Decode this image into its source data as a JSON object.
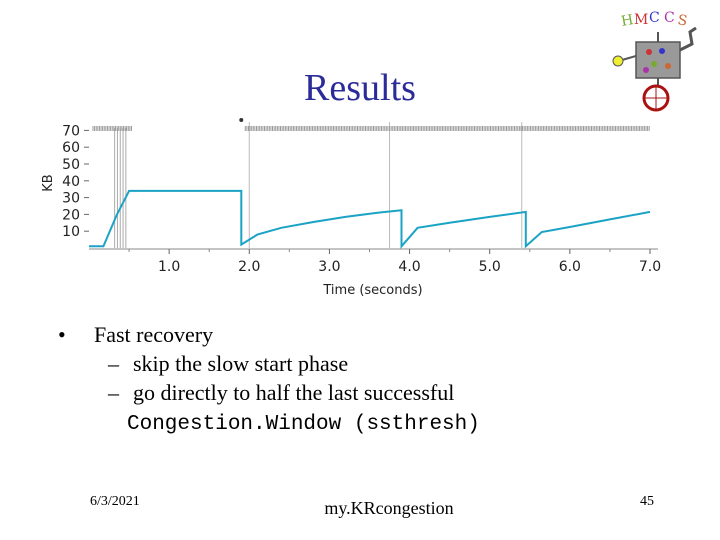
{
  "slide": {
    "title": "Results",
    "bullets": [
      {
        "text": "Fast recovery"
      }
    ],
    "sub_bullets": [
      {
        "text": "skip the slow start phase"
      },
      {
        "text": "go directly to half the last successful"
      }
    ],
    "sub_bullet_mono": "Congestion.Window (ssthresh)",
    "bullet_marker": "•",
    "sub_marker": "–",
    "footer_date": "6/3/2021",
    "footer_center": "my.KRcongestion",
    "footer_page": "45"
  },
  "logo": {
    "icon": "hmc-cs-robot-logo-icon",
    "text": "HMC CS"
  },
  "chart_data": {
    "type": "line",
    "xlabel": "Time (seconds)",
    "ylabel": "KB",
    "xlim": [
      0,
      7.1
    ],
    "ylim": [
      0,
      75
    ],
    "x_ticks": [
      1.0,
      2.0,
      3.0,
      4.0,
      5.0,
      6.0,
      7.0
    ],
    "x_tick_labels": [
      "1.0",
      "2.0",
      "3.0",
      "4.0",
      "5.0",
      "6.0",
      "7.0"
    ],
    "y_ticks": [
      10,
      20,
      30,
      40,
      50,
      60,
      70
    ],
    "y_tick_labels": [
      "10",
      "20",
      "30",
      "40",
      "50",
      "60",
      "70"
    ],
    "line_color": "#1aa3c4",
    "series": [
      {
        "values_xy": [
          [
            0.0,
            1
          ],
          [
            0.18,
            1
          ],
          [
            0.35,
            20
          ],
          [
            0.5,
            34
          ],
          [
            1.9,
            34
          ],
          [
            1.9,
            2
          ],
          [
            2.1,
            8
          ],
          [
            2.4,
            12
          ],
          [
            2.8,
            15.5
          ],
          [
            3.2,
            18.5
          ],
          [
            3.6,
            21
          ],
          [
            3.9,
            22.5
          ],
          [
            3.9,
            1
          ],
          [
            4.1,
            12
          ],
          [
            4.5,
            15
          ],
          [
            5.0,
            18.5
          ],
          [
            5.45,
            21.5
          ],
          [
            5.45,
            1
          ],
          [
            5.65,
            9.5
          ],
          [
            6.0,
            12.5
          ],
          [
            6.5,
            17
          ],
          [
            7.0,
            21.5
          ]
        ]
      }
    ],
    "event_lines_x": [
      2.0,
      3.75,
      5.4
    ]
  }
}
